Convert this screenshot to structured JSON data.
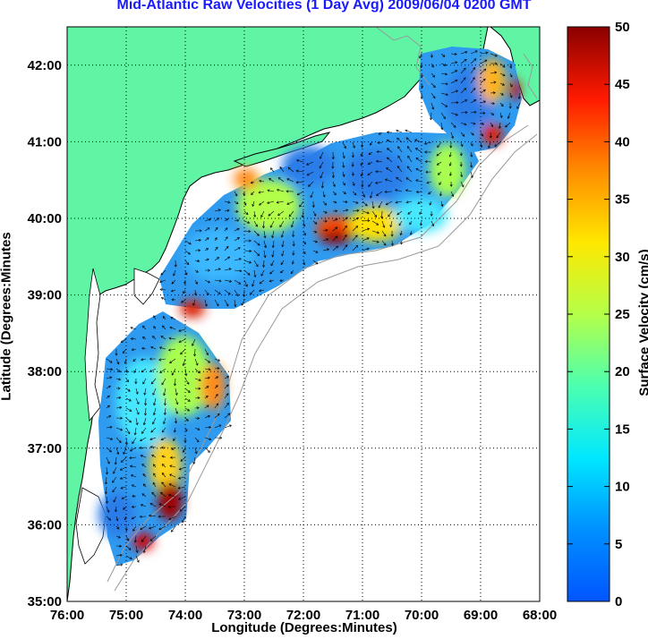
{
  "title": "Mid-Atlantic Raw Velocities (1 Day Avg) 2009/06/04 0200 GMT",
  "xlabel": "Longitude (Degrees:Minutes)",
  "ylabel": "Latitude (Degrees:Minutes",
  "colorbar_label": "Surface Velocity (cm/s)",
  "colors": {
    "land": "#5ff5a5",
    "title": "#1a1aff",
    "vector": "#000000",
    "coast": "#000000",
    "bathymetry": "#9a9a9a"
  },
  "chart_data": {
    "type": "heatmap",
    "subtype": "current-velocity-map",
    "xlim": [
      -76,
      -68
    ],
    "ylim": [
      35,
      42.5
    ],
    "x_ticks": [
      "76:00",
      "75:00",
      "74:00",
      "73:00",
      "72:00",
      "71:00",
      "70:00",
      "69:00",
      "68:00"
    ],
    "y_ticks": [
      "35:00",
      "36:00",
      "37:00",
      "38:00",
      "39:00",
      "40:00",
      "41:00",
      "42:00"
    ],
    "grid": "dotted",
    "colorbar": {
      "min": 0,
      "max": 50,
      "ticks": [
        "0",
        "5",
        "10",
        "15",
        "20",
        "25",
        "30",
        "35",
        "40",
        "45",
        "50"
      ],
      "colormap": "jet"
    }
  }
}
